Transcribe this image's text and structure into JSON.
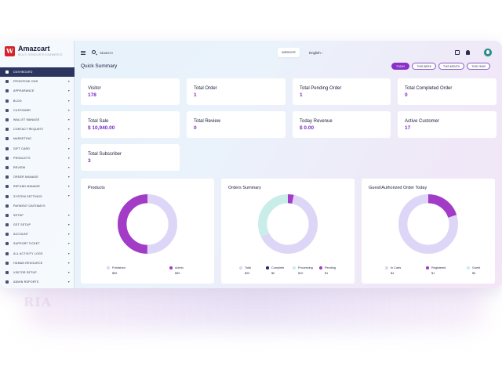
{
  "brand": {
    "name": "Amazcart",
    "subtitle": "MULTI VENDOR ECOMMERCE",
    "logo_letter": "W"
  },
  "sidebar": {
    "items": [
      {
        "label": "DASHBOARD",
        "active": true,
        "has_arrow": false
      },
      {
        "label": "FRONTEND CMS",
        "has_arrow": true
      },
      {
        "label": "APPEARANCE",
        "has_arrow": true
      },
      {
        "label": "BLOG",
        "has_arrow": true
      },
      {
        "label": "CUSTOMER",
        "has_arrow": true
      },
      {
        "label": "WALLET MANAGE",
        "has_arrow": true
      },
      {
        "label": "CONTACT REQUEST",
        "has_arrow": true
      },
      {
        "label": "MARKETING",
        "has_arrow": true
      },
      {
        "label": "GIFT CARD",
        "has_arrow": true
      },
      {
        "label": "PRODUCTS",
        "has_arrow": true
      },
      {
        "label": "REVIEW",
        "has_arrow": true
      },
      {
        "label": "ORDER MANAGE",
        "has_arrow": true
      },
      {
        "label": "REFUND MANAGE",
        "has_arrow": true
      },
      {
        "label": "SYSTEM SETTINGS",
        "has_arrow": true
      },
      {
        "label": "PAYMENT GATEWAYS",
        "has_arrow": false
      },
      {
        "label": "SETUP",
        "has_arrow": true
      },
      {
        "label": "GST SETUP",
        "has_arrow": true
      },
      {
        "label": "ACCOUNT",
        "has_arrow": true
      },
      {
        "label": "SUPPORT TICKET",
        "has_arrow": true
      },
      {
        "label": "ALL ACTIVITY LOGS",
        "has_arrow": true
      },
      {
        "label": "HUMAN RESOURCE",
        "has_arrow": true
      },
      {
        "label": "VISITOR SETUP",
        "has_arrow": true
      },
      {
        "label": "ADMIN REPORTS",
        "has_arrow": true
      }
    ]
  },
  "topbar": {
    "search_label": "SEARCH",
    "website_label": "WEBSITE",
    "language": "English"
  },
  "main": {
    "title": "Quick Summary",
    "filters": [
      {
        "label": "TODAY",
        "active": true
      },
      {
        "label": "THIS WEEK",
        "active": false
      },
      {
        "label": "THIS MONTH",
        "active": false
      },
      {
        "label": "THIS YEAR",
        "active": false
      }
    ],
    "cards": [
      {
        "label": "Visitor",
        "value": "178"
      },
      {
        "label": "Total Order",
        "value": "1"
      },
      {
        "label": "Total Pending Order",
        "value": "1"
      },
      {
        "label": "Total Completed Order",
        "value": "0"
      },
      {
        "label": "Total Sale",
        "value": "$ 10,940.00"
      },
      {
        "label": "Total Review",
        "value": "0"
      },
      {
        "label": "Today Revenue",
        "value": "$ 0.00"
      },
      {
        "label": "Active Customer",
        "value": "17"
      },
      {
        "label": "Total Subscriber",
        "value": "3"
      }
    ],
    "charts": [
      {
        "title": "Products",
        "segments": [
          {
            "name": "Published",
            "value": 59,
            "color": "#ddd6f7"
          },
          {
            "name": "Admin",
            "value": 59,
            "color": "#a23cc7"
          }
        ],
        "legend": [
          {
            "name": "Published",
            "value": "$59",
            "color": "#ddd6f7"
          },
          {
            "name": "Admin",
            "value": "$59",
            "color": "#a23cc7"
          }
        ]
      },
      {
        "title": "Orders Summary",
        "segments": [
          {
            "name": "Pending",
            "value": 1,
            "color": "#a23cc7"
          },
          {
            "name": "Total",
            "value": 20,
            "color": "#ddd6f7"
          },
          {
            "name": "Processing",
            "value": 10,
            "color": "#c9ede9"
          }
        ],
        "legend": [
          {
            "name": "Total",
            "value": "$20",
            "color": "#ddd6f7"
          },
          {
            "name": "Complete",
            "value": "$0",
            "color": "#1e2a6e"
          },
          {
            "name": "Processing",
            "value": "$10",
            "color": "#c9ede9"
          },
          {
            "name": "Pending",
            "value": "$1",
            "color": "#a23cc7"
          }
        ]
      },
      {
        "title": "Guest/Authorized Order Today",
        "segments": [
          {
            "name": "Registered",
            "value": 1,
            "color": "#a23cc7"
          },
          {
            "name": "In Carts",
            "value": 4,
            "color": "#ddd6f7"
          }
        ],
        "legend": [
          {
            "name": "In Carts",
            "value": "$4",
            "color": "#ddd6f7"
          },
          {
            "name": "Registered",
            "value": "$1",
            "color": "#a23cc7"
          },
          {
            "name": "Guest",
            "value": "$0",
            "color": "#c9ede9"
          }
        ]
      }
    ]
  }
}
